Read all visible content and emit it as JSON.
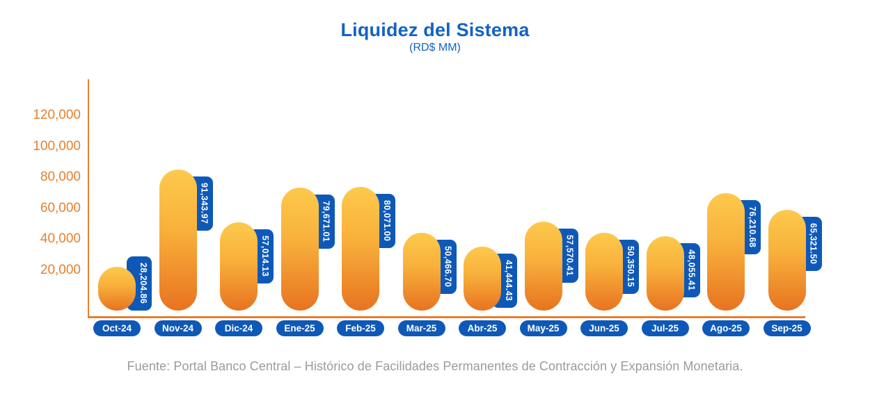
{
  "title": "Liquidez del Sistema",
  "subtitle": "(RD$ MM)",
  "source": "Fuente: Portal Banco Central – Histórico de Facilidades Permanentes de Contracción y Expansión Monetaria.",
  "colors": {
    "title_blue": "#1262C4",
    "pill_blue": "#0E59B8",
    "axis_orange": "#E87E2B",
    "bar_gradient_top": "#FDC94C",
    "bar_gradient_mid": "#F8B13C",
    "bar_gradient_bottom": "#E87320",
    "source_gray": "#9A9A9A",
    "label_text": "#FFFFFF"
  },
  "chart_data": {
    "type": "bar",
    "title": "Liquidez del Sistema",
    "subtitle": "(RD$ MM)",
    "categories": [
      "Oct-24",
      "Nov-24",
      "Dic-24",
      "Ene-25",
      "Feb-25",
      "Mar-25",
      "Abr-25",
      "May-25",
      "Jun-25",
      "Jul-25",
      "Ago-25",
      "Sep-25"
    ],
    "values": [
      28204.86,
      91343.97,
      57014.13,
      79671.01,
      80071.0,
      50466.7,
      41444.43,
      57570.41,
      50350.15,
      48055.41,
      76210.68,
      65321.5
    ],
    "value_labels": [
      "28,204.86",
      "91,343.97",
      "57,014.13",
      "79,671.01",
      "80,071.00",
      "50,466.70",
      "41,444.43",
      "57,570.41",
      "50,350.15",
      "48,055.41",
      "76,210.68",
      "65,321.50"
    ],
    "y_ticks": [
      {
        "value": 120000,
        "label": "120,000"
      },
      {
        "value": 100000,
        "label": "100,000"
      },
      {
        "value": 80000,
        "label": "80,000"
      },
      {
        "value": 60000,
        "label": "60,000"
      },
      {
        "value": 40000,
        "label": "40,000"
      },
      {
        "value": 20000,
        "label": "20,000"
      }
    ],
    "ylim": [
      0,
      130000
    ],
    "grid": false,
    "legend": false,
    "bar_style": "rounded-capsule with vertical yellow-to-orange gradient",
    "value_label_style": "blue rounded pill, white text rotated 90deg, attached right of bar top",
    "category_label_style": "blue rounded pill below axis"
  }
}
